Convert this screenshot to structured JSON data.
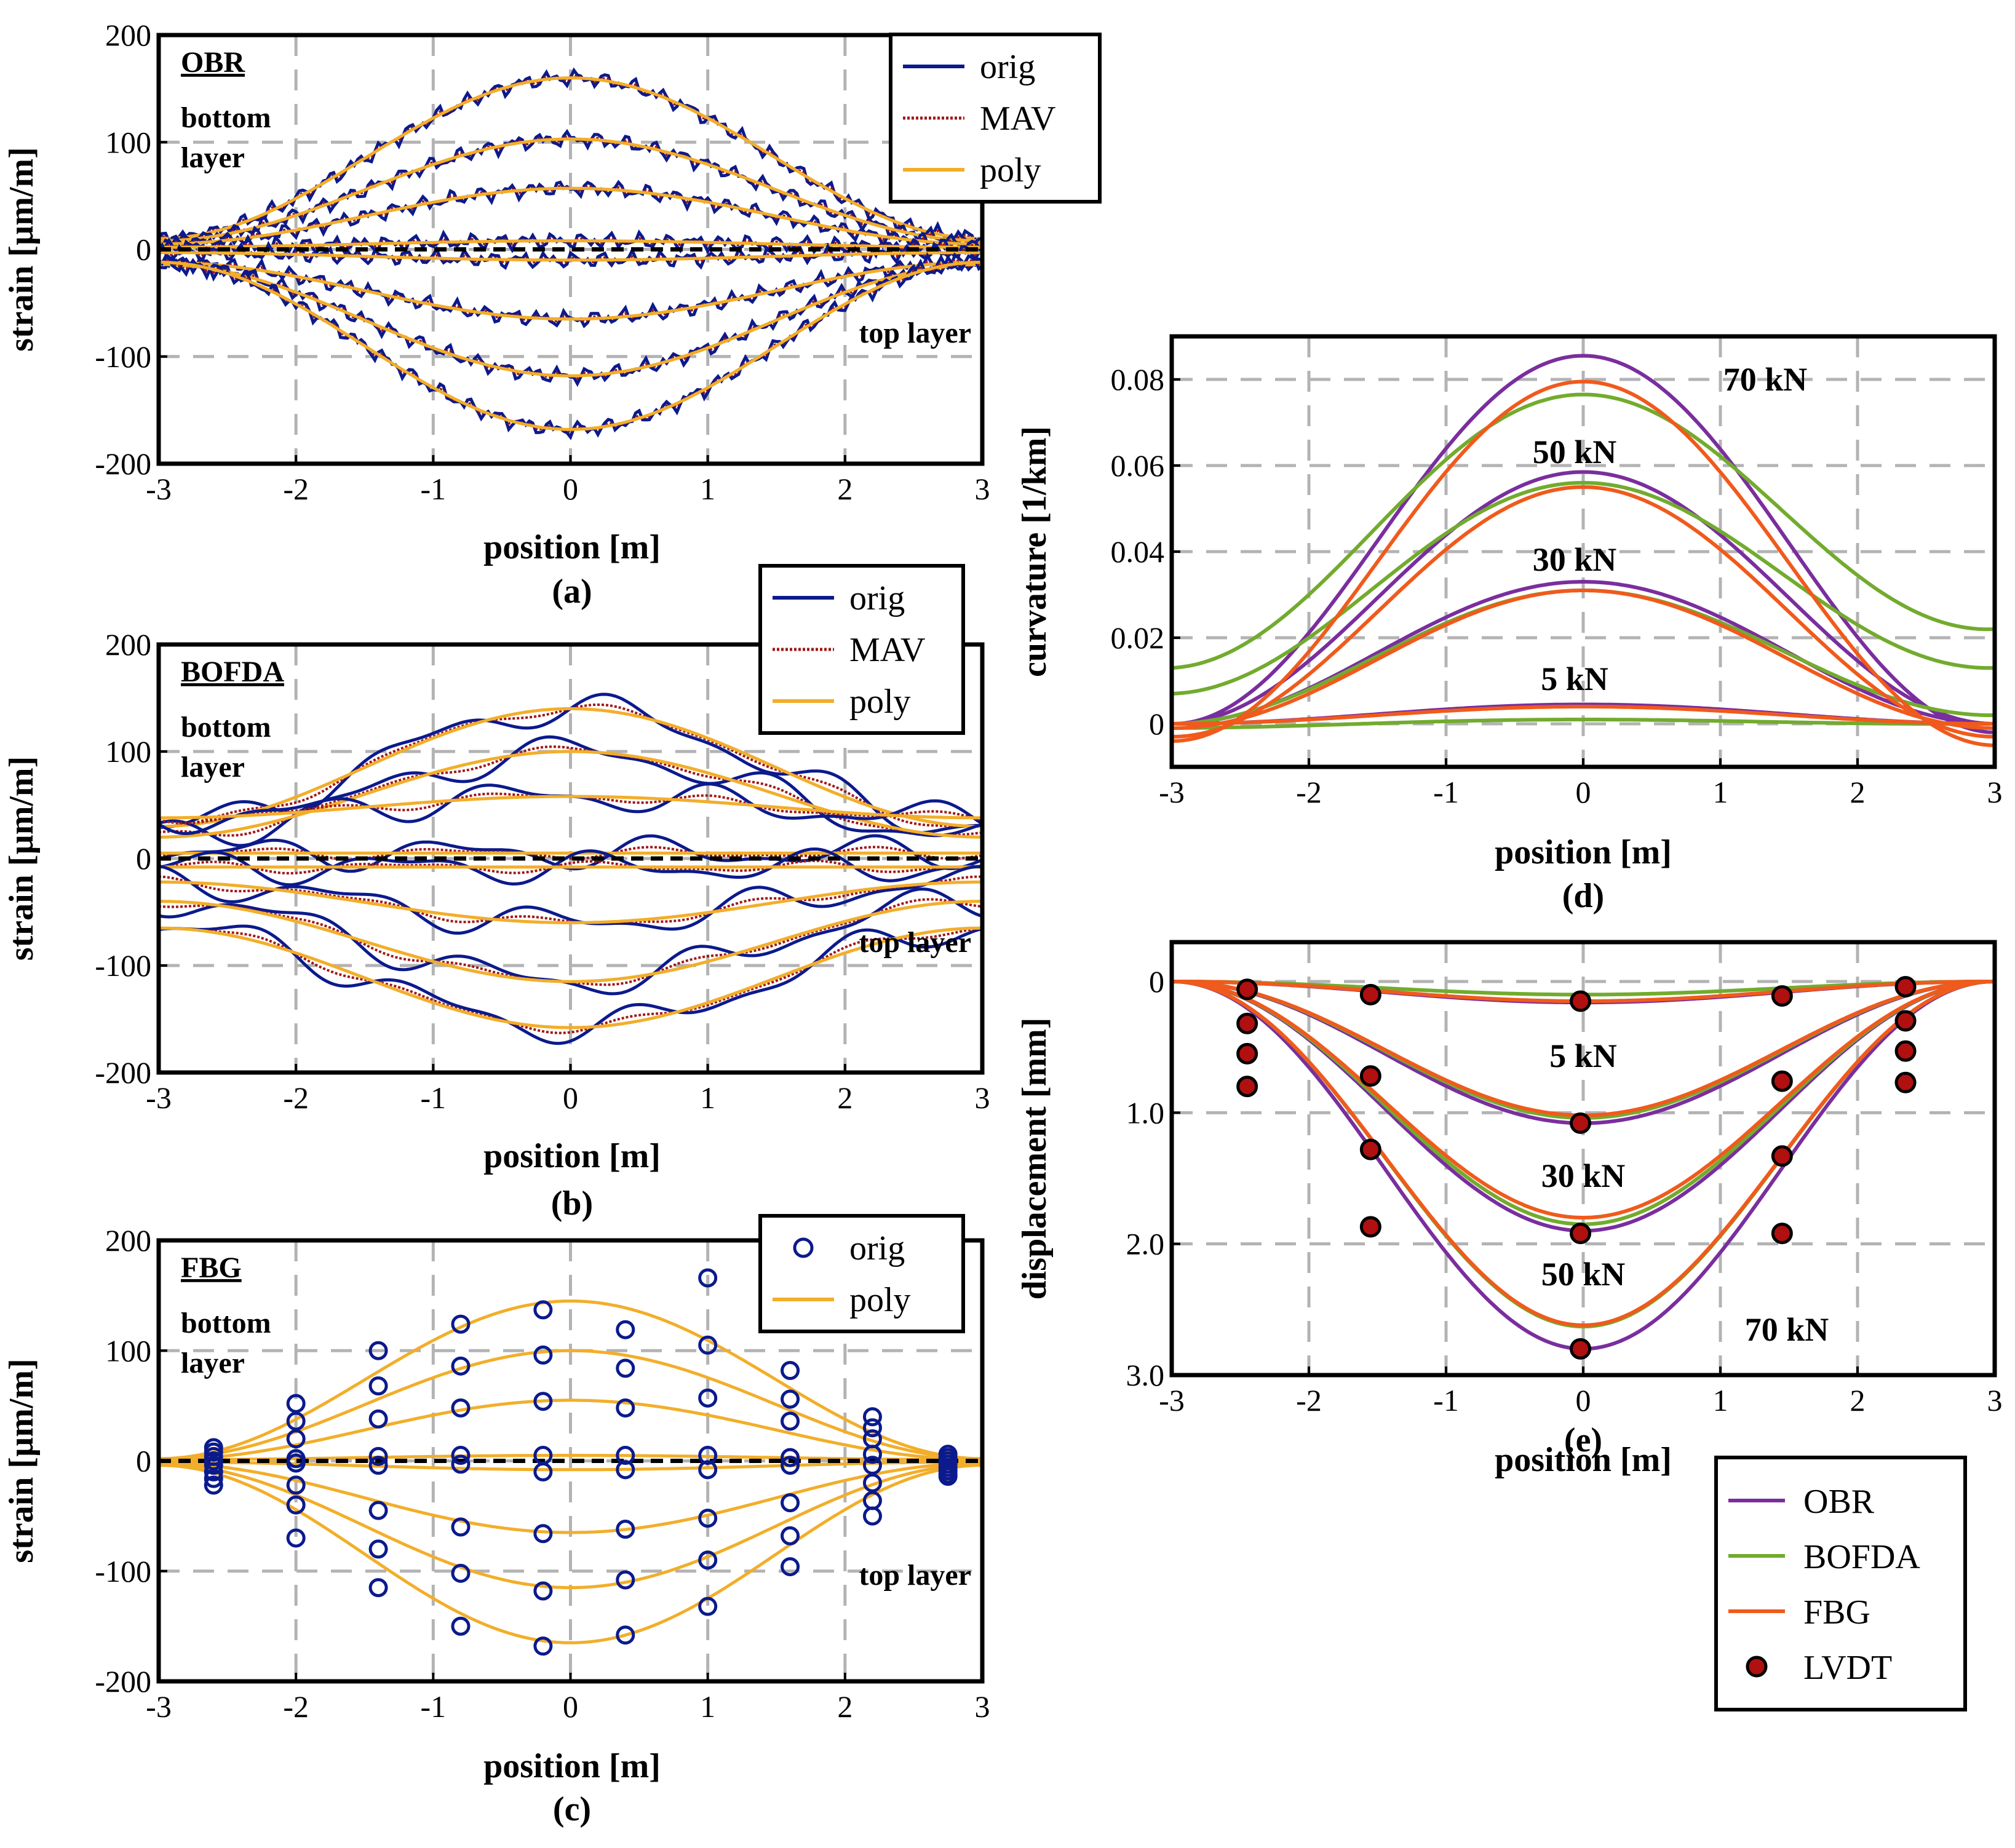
{
  "colors": {
    "orig": "#0b1a8c",
    "mav": "#a01818",
    "poly": "#f2ae2a",
    "obr": "#7a2e9e",
    "bofda": "#72ab2e",
    "fbg": "#f05a1c",
    "lvdt": "#b01010",
    "grid": "#b3b3b3"
  },
  "chart_data": [
    {
      "id": "a",
      "type": "line",
      "label": "(a)",
      "panel_title": "OBR",
      "annotations": [
        "bottom",
        "layer",
        "top layer"
      ],
      "xlabel": "position [m]",
      "ylabel": "strain [µm/m]",
      "xlim": [
        -3,
        3
      ],
      "ylim": [
        -200,
        200
      ],
      "xticks": [
        "-3",
        "-2",
        "-1",
        "0",
        "1",
        "2",
        "3"
      ],
      "yticks": [
        "-200",
        "-100",
        "0",
        "100",
        "200"
      ],
      "legend": [
        "orig",
        "MAV",
        "poly"
      ],
      "curves": [
        {
          "peak": 160,
          "end": 10
        },
        {
          "peak": 103,
          "end": 8
        },
        {
          "peak": 57,
          "end": 5
        },
        {
          "peak": 8,
          "end": 2
        },
        {
          "peak": -10,
          "end": -3
        },
        {
          "peak": -65,
          "end": -12
        },
        {
          "peak": -118,
          "end": -14
        },
        {
          "peak": -168,
          "end": -12
        }
      ]
    },
    {
      "id": "b",
      "type": "line",
      "label": "(b)",
      "panel_title": "BOFDA",
      "annotations": [
        "bottom",
        "layer",
        "top layer"
      ],
      "xlabel": "position [m]",
      "ylabel": "strain [µm/m]",
      "xlim": [
        -3,
        3
      ],
      "ylim": [
        -200,
        200
      ],
      "xticks": [
        "-3",
        "-2",
        "-1",
        "0",
        "1",
        "2",
        "3"
      ],
      "yticks": [
        "-200",
        "-100",
        "0",
        "100",
        "200"
      ],
      "legend": [
        "orig",
        "MAV",
        "poly"
      ],
      "curves": [
        {
          "peak": 140,
          "end": 30
        },
        {
          "peak": 100,
          "end": 20
        },
        {
          "peak": 58,
          "end": 38
        },
        {
          "peak": 5,
          "end": 5
        },
        {
          "peak": -8,
          "end": -8
        },
        {
          "peak": -60,
          "end": -22
        },
        {
          "peak": -115,
          "end": -40
        },
        {
          "peak": -158,
          "end": -65
        }
      ]
    },
    {
      "id": "c",
      "type": "scatter",
      "label": "(c)",
      "panel_title": "FBG",
      "annotations": [
        "bottom",
        "layer",
        "top layer"
      ],
      "xlabel": "position [m]",
      "ylabel": "strain [µm/m]",
      "xlim": [
        -3,
        3
      ],
      "ylim": [
        -200,
        200
      ],
      "xticks": [
        "-3",
        "-2",
        "-1",
        "0",
        "1",
        "2",
        "3"
      ],
      "yticks": [
        "-200",
        "-100",
        "0",
        "100",
        "200"
      ],
      "legend": [
        "orig",
        "poly"
      ],
      "curves": [
        {
          "peak": 145,
          "end": 2
        },
        {
          "peak": 100,
          "end": 2
        },
        {
          "peak": 55,
          "end": 1
        },
        {
          "peak": 5,
          "end": 1
        },
        {
          "peak": -8,
          "end": -1
        },
        {
          "peak": -65,
          "end": -2
        },
        {
          "peak": -115,
          "end": -3
        },
        {
          "peak": -165,
          "end": -4
        }
      ],
      "points": [
        [
          -2.6,
          12
        ],
        [
          -2.6,
          8
        ],
        [
          -2.6,
          4
        ],
        [
          -2.6,
          0
        ],
        [
          -2.6,
          -4
        ],
        [
          -2.6,
          -10
        ],
        [
          -2.6,
          -16
        ],
        [
          -2.6,
          -22
        ],
        [
          -2.0,
          52
        ],
        [
          -2.0,
          36
        ],
        [
          -2.0,
          20
        ],
        [
          -2.0,
          2
        ],
        [
          -2.0,
          -2
        ],
        [
          -2.0,
          -22
        ],
        [
          -2.0,
          -40
        ],
        [
          -2.0,
          -70
        ],
        [
          -1.4,
          100
        ],
        [
          -1.4,
          68
        ],
        [
          -1.4,
          38
        ],
        [
          -1.4,
          4
        ],
        [
          -1.4,
          -4
        ],
        [
          -1.4,
          -45
        ],
        [
          -1.4,
          -80
        ],
        [
          -1.4,
          -115
        ],
        [
          -0.8,
          124
        ],
        [
          -0.8,
          86
        ],
        [
          -0.8,
          48
        ],
        [
          -0.8,
          5
        ],
        [
          -0.8,
          -3
        ],
        [
          -0.8,
          -60
        ],
        [
          -0.8,
          -102
        ],
        [
          -0.8,
          -150
        ],
        [
          -0.2,
          137
        ],
        [
          -0.2,
          96
        ],
        [
          -0.2,
          54
        ],
        [
          -0.2,
          5
        ],
        [
          -0.2,
          -10
        ],
        [
          -0.2,
          -66
        ],
        [
          -0.2,
          -118
        ],
        [
          -0.2,
          -168
        ],
        [
          0.4,
          119
        ],
        [
          0.4,
          84
        ],
        [
          0.4,
          48
        ],
        [
          0.4,
          5
        ],
        [
          0.4,
          -8
        ],
        [
          0.4,
          -62
        ],
        [
          0.4,
          -108
        ],
        [
          0.4,
          -158
        ],
        [
          1.0,
          166
        ],
        [
          1.0,
          105
        ],
        [
          1.0,
          57
        ],
        [
          1.0,
          5
        ],
        [
          1.0,
          -8
        ],
        [
          1.0,
          -52
        ],
        [
          1.0,
          -90
        ],
        [
          1.0,
          -132
        ],
        [
          1.6,
          82
        ],
        [
          1.6,
          56
        ],
        [
          1.6,
          36
        ],
        [
          1.6,
          3
        ],
        [
          1.6,
          -4
        ],
        [
          1.6,
          -38
        ],
        [
          1.6,
          -68
        ],
        [
          1.6,
          -96
        ],
        [
          2.2,
          40
        ],
        [
          2.2,
          30
        ],
        [
          2.2,
          20
        ],
        [
          2.2,
          6
        ],
        [
          2.2,
          -4
        ],
        [
          2.2,
          -20
        ],
        [
          2.2,
          -36
        ],
        [
          2.2,
          -50
        ],
        [
          2.75,
          6
        ],
        [
          2.75,
          3
        ],
        [
          2.75,
          0
        ],
        [
          2.75,
          -3
        ],
        [
          2.75,
          -6
        ],
        [
          2.75,
          -9
        ],
        [
          2.75,
          -12
        ],
        [
          2.75,
          -14
        ]
      ]
    },
    {
      "id": "d",
      "type": "line",
      "label": "(d)",
      "xlabel": "position [m]",
      "ylabel": "curvature [1/km]",
      "xlim": [
        -3,
        3
      ],
      "ylim": [
        -0.01,
        0.09
      ],
      "xticks": [
        "-3",
        "-2",
        "-1",
        "0",
        "1",
        "2",
        "3"
      ],
      "yticks": [
        "0",
        "0.02",
        "0.04",
        "0.06",
        "0.08"
      ],
      "load_labels": [
        "70 kN",
        "50 kN",
        "30 kN",
        "5 kN"
      ],
      "series": [
        {
          "name": "OBR",
          "curves": [
            {
              "peak": 0.0855,
              "left": 0.0,
              "right": -0.002
            },
            {
              "peak": 0.0585,
              "left": 0.0,
              "right": 0.0
            },
            {
              "peak": 0.033,
              "left": 0.0,
              "right": 0.0
            },
            {
              "peak": 0.0045,
              "left": 0.0,
              "right": 0.0
            }
          ]
        },
        {
          "name": "BOFDA",
          "curves": [
            {
              "peak": 0.0765,
              "left": 0.013,
              "right": 0.022
            },
            {
              "peak": 0.056,
              "left": 0.007,
              "right": 0.013
            },
            {
              "peak": 0.031,
              "left": 0.0,
              "right": 0.002
            },
            {
              "peak": 0.001,
              "left": -0.001,
              "right": 0.0
            }
          ]
        },
        {
          "name": "FBG",
          "curves": [
            {
              "peak": 0.0795,
              "left": -0.004,
              "right": -0.005
            },
            {
              "peak": 0.055,
              "left": -0.003,
              "right": -0.003
            },
            {
              "peak": 0.031,
              "left": -0.001,
              "right": -0.001
            },
            {
              "peak": 0.004,
              "left": 0.0,
              "right": 0.0
            }
          ]
        }
      ]
    },
    {
      "id": "e",
      "type": "line",
      "label": "(e)",
      "xlabel": "position [m]",
      "ylabel": "displacement [mm]",
      "xlim": [
        -3,
        3
      ],
      "ylim": [
        3.0,
        -0.3
      ],
      "xticks": [
        "-3",
        "-2",
        "-1",
        "0",
        "1",
        "2",
        "3"
      ],
      "yticks": [
        "0",
        "1.0",
        "2.0",
        "3.0"
      ],
      "load_labels": [
        "5 kN",
        "30 kN",
        "50 kN",
        "70 kN"
      ],
      "series": [
        {
          "name": "OBR",
          "peaks": [
            0.16,
            1.08,
            1.9,
            2.8
          ]
        },
        {
          "name": "BOFDA",
          "peaks": [
            0.1,
            1.04,
            1.85,
            2.63
          ]
        },
        {
          "name": "FBG",
          "peaks": [
            0.15,
            1.02,
            1.8,
            2.62
          ]
        }
      ],
      "lvdt_points": [
        [
          -2.45,
          0.06
        ],
        [
          -1.55,
          0.1
        ],
        [
          -0.02,
          0.15
        ],
        [
          1.45,
          0.11
        ],
        [
          2.35,
          0.04
        ],
        [
          -2.45,
          0.32
        ],
        [
          -1.55,
          0.72
        ],
        [
          -0.02,
          1.08
        ],
        [
          1.45,
          0.76
        ],
        [
          2.35,
          0.3
        ],
        [
          -2.45,
          0.55
        ],
        [
          -1.55,
          1.28
        ],
        [
          -0.02,
          1.92
        ],
        [
          1.45,
          1.33
        ],
        [
          2.35,
          0.53
        ],
        [
          -2.45,
          0.8
        ],
        [
          -1.55,
          1.87
        ],
        [
          -0.02,
          2.8
        ],
        [
          1.45,
          1.92
        ],
        [
          2.35,
          0.77
        ]
      ],
      "legend": [
        "OBR",
        "BOFDA",
        "FBG",
        "LVDT"
      ]
    }
  ]
}
